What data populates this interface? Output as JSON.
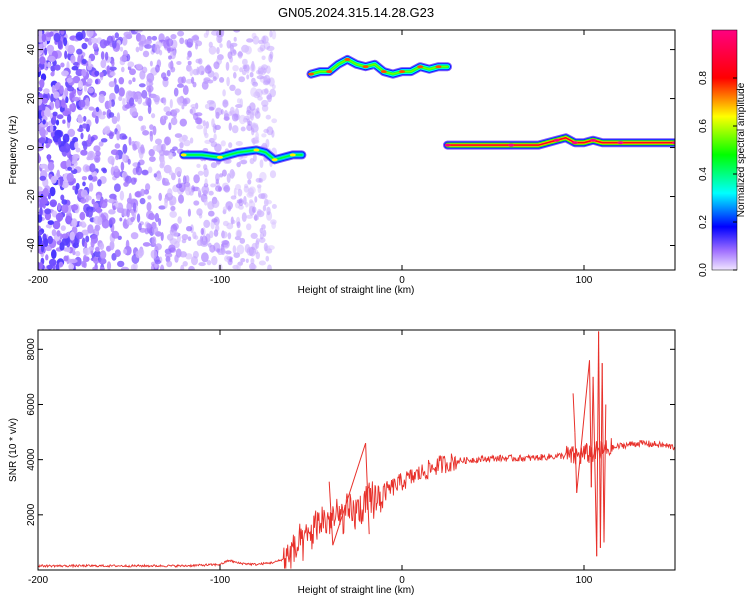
{
  "title": "GN05.2024.315.14.28.G23",
  "chart_data": [
    {
      "type": "heatmap",
      "xlabel": "Height of straight line (km)",
      "ylabel": "Frequency (Hz)",
      "xlim": [
        -200,
        150
      ],
      "ylim": [
        -50,
        48
      ],
      "xticks": [
        -200,
        -100,
        0,
        100
      ],
      "yticks": [
        -40,
        -20,
        0,
        20,
        40
      ],
      "colorbar": {
        "label": "Normalized spectral amplitude",
        "range": [
          0,
          1
        ],
        "ticks": [
          "0.0",
          "0.2",
          "0.4",
          "0.6",
          "0.8"
        ],
        "colormap": [
          "#f0e6ff",
          "#7a00ff",
          "#0000ff",
          "#00ffff",
          "#00ff00",
          "#ffff00",
          "#ff0000",
          "#ff0080"
        ]
      },
      "noise_region": {
        "x": [
          -200,
          -70
        ],
        "y": [
          -50,
          48
        ],
        "level": 0.1
      },
      "ridges": [
        {
          "x": [
            -120,
            -110,
            -100,
            -90,
            -80,
            -75,
            -70,
            -65,
            -60,
            -55
          ],
          "y": [
            -3,
            -3,
            -4,
            -2,
            -1,
            -2,
            -5,
            -4,
            -3,
            -3
          ],
          "level": 0.45
        },
        {
          "x": [
            -50,
            -45,
            -40,
            -35,
            -30,
            -25,
            -20,
            -15,
            -10,
            -5,
            0,
            5,
            10,
            15,
            20,
            25
          ],
          "y": [
            30,
            31,
            31,
            34,
            36,
            34,
            33,
            34,
            31,
            30,
            31,
            31,
            33,
            32,
            33,
            33
          ],
          "level": 0.55
        },
        {
          "x": [
            25,
            40,
            60,
            75,
            85,
            90,
            95,
            100,
            105,
            110,
            120,
            135,
            150
          ],
          "y": [
            1,
            1,
            1,
            1,
            3,
            4,
            2,
            2,
            3,
            2,
            2,
            2,
            2
          ],
          "level": 0.85
        }
      ]
    },
    {
      "type": "line",
      "xlabel": "Height of straight line (km)",
      "ylabel": "SNR (10 * v/v)",
      "xlim": [
        -200,
        150
      ],
      "ylim": [
        0,
        8700
      ],
      "xticks": [
        -200,
        -100,
        0,
        100
      ],
      "yticks": [
        2000,
        4000,
        6000,
        8000
      ],
      "color": "#e8302a",
      "series": [
        {
          "x": [
            -200,
            -180,
            -160,
            -140,
            -120,
            -100,
            -95,
            -90,
            -80,
            -70,
            -65,
            -60,
            -55,
            -50,
            -45,
            -40,
            -35,
            -30,
            -25,
            -20,
            -15,
            -10,
            -5,
            0,
            10,
            20,
            30,
            40,
            50,
            60,
            70,
            80,
            90,
            95,
            100,
            105,
            108,
            110,
            112,
            115,
            120,
            130,
            140,
            150
          ],
          "y": [
            150,
            150,
            150,
            150,
            150,
            200,
            350,
            250,
            200,
            280,
            400,
            700,
            900,
            1300,
            1800,
            1800,
            1900,
            2000,
            2100,
            2300,
            2600,
            2800,
            3000,
            3200,
            3500,
            3800,
            3950,
            4000,
            4050,
            4050,
            4050,
            4100,
            4150,
            4100,
            4200,
            4250,
            4300,
            4300,
            4350,
            4400,
            4500,
            4600,
            4550,
            4450
          ]
        },
        {
          "x": [
            -40,
            -38,
            -20,
            -18
          ],
          "y": [
            3200,
            900,
            4600,
            1300
          ]
        },
        {
          "x": [
            94,
            95,
            96,
            103,
            104,
            105,
            107,
            108,
            109,
            110,
            111,
            112
          ],
          "y": [
            6400,
            5000,
            2800,
            7600,
            3000,
            7000,
            500,
            8650,
            800,
            7500,
            1000,
            6000
          ]
        }
      ]
    }
  ]
}
